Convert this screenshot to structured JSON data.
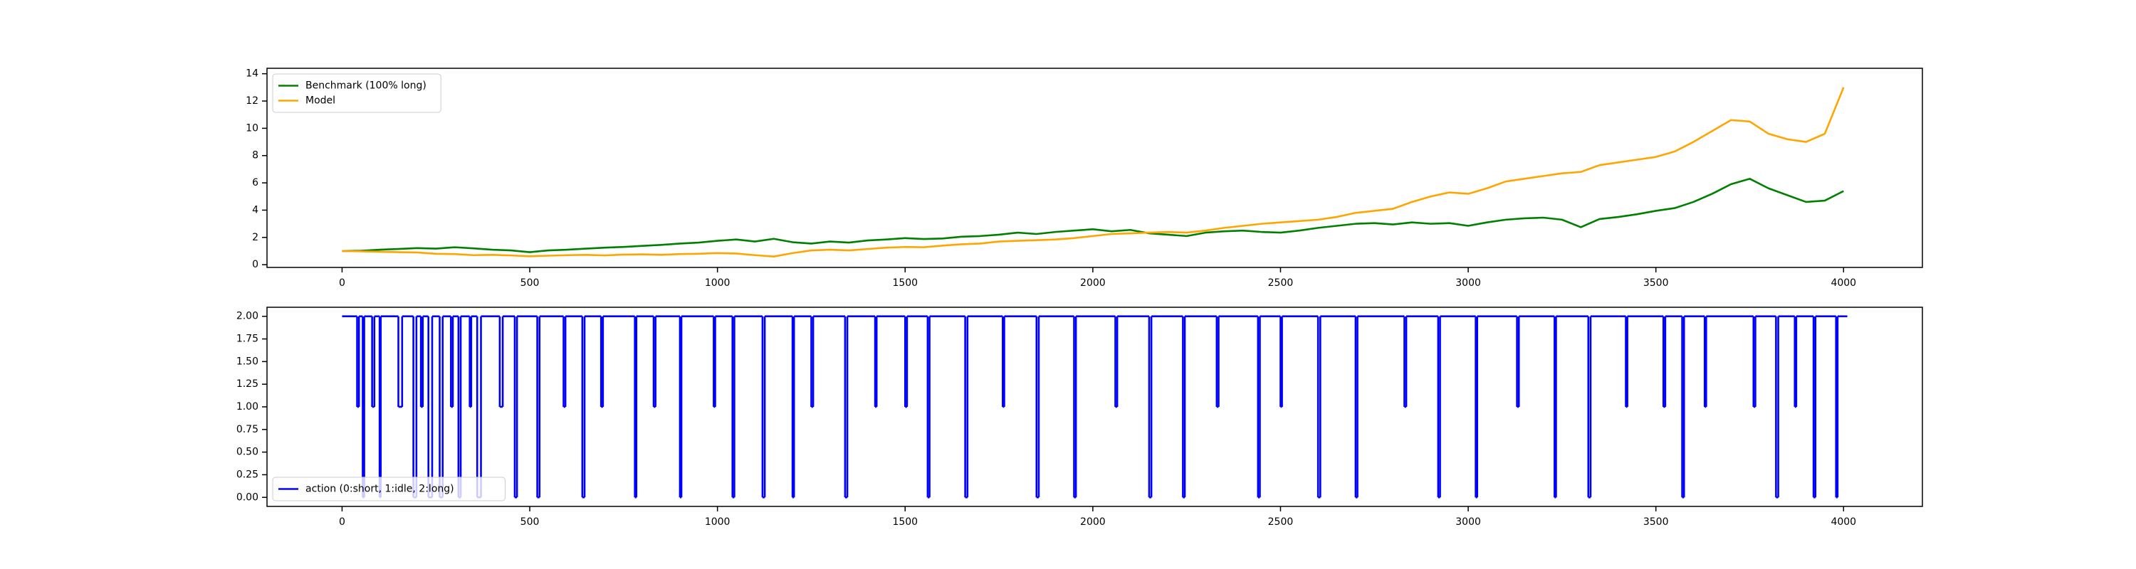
{
  "chart_data": [
    {
      "type": "line",
      "x": [
        0,
        50,
        100,
        150,
        200,
        250,
        300,
        350,
        400,
        450,
        500,
        550,
        600,
        650,
        700,
        750,
        800,
        850,
        900,
        950,
        1000,
        1050,
        1100,
        1150,
        1200,
        1250,
        1300,
        1350,
        1400,
        1450,
        1500,
        1550,
        1600,
        1650,
        1700,
        1750,
        1800,
        1850,
        1900,
        1950,
        2000,
        2050,
        2100,
        2150,
        2200,
        2250,
        2300,
        2350,
        2400,
        2450,
        2500,
        2550,
        2600,
        2650,
        2700,
        2750,
        2800,
        2850,
        2900,
        2950,
        3000,
        3050,
        3100,
        3150,
        3200,
        3250,
        3300,
        3350,
        3400,
        3450,
        3500,
        3550,
        3600,
        3650,
        3700,
        3750,
        3800,
        3850,
        3900,
        3950,
        4000
      ],
      "series": [
        {
          "name": "Benchmark (100% long)",
          "color": "#008000",
          "values": [
            1.0,
            1.02,
            1.1,
            1.15,
            1.22,
            1.18,
            1.28,
            1.2,
            1.1,
            1.05,
            0.92,
            1.05,
            1.1,
            1.18,
            1.25,
            1.3,
            1.38,
            1.45,
            1.55,
            1.62,
            1.75,
            1.85,
            1.7,
            1.9,
            1.65,
            1.55,
            1.7,
            1.62,
            1.78,
            1.85,
            1.95,
            1.88,
            1.92,
            2.05,
            2.1,
            2.2,
            2.35,
            2.25,
            2.4,
            2.5,
            2.6,
            2.45,
            2.55,
            2.3,
            2.2,
            2.1,
            2.35,
            2.45,
            2.5,
            2.4,
            2.35,
            2.5,
            2.7,
            2.85,
            3.0,
            3.05,
            2.95,
            3.1,
            3.0,
            3.05,
            2.85,
            3.1,
            3.3,
            3.4,
            3.45,
            3.3,
            2.75,
            3.35,
            3.5,
            3.7,
            3.95,
            4.15,
            4.6,
            5.2,
            5.9,
            6.3,
            5.6,
            5.1,
            4.6,
            4.7,
            5.4
          ]
        },
        {
          "name": "Model",
          "color": "#ffa500",
          "values": [
            1.0,
            0.98,
            0.95,
            0.92,
            0.9,
            0.8,
            0.78,
            0.7,
            0.72,
            0.68,
            0.62,
            0.66,
            0.7,
            0.72,
            0.68,
            0.74,
            0.76,
            0.72,
            0.78,
            0.8,
            0.85,
            0.82,
            0.7,
            0.6,
            0.85,
            1.05,
            1.1,
            1.05,
            1.15,
            1.25,
            1.3,
            1.28,
            1.4,
            1.5,
            1.55,
            1.7,
            1.75,
            1.8,
            1.85,
            1.95,
            2.1,
            2.25,
            2.3,
            2.35,
            2.4,
            2.35,
            2.5,
            2.7,
            2.85,
            3.0,
            3.1,
            3.2,
            3.3,
            3.5,
            3.8,
            3.95,
            4.1,
            4.6,
            5.0,
            5.3,
            5.2,
            5.6,
            6.1,
            6.3,
            6.5,
            6.7,
            6.8,
            7.3,
            7.5,
            7.7,
            7.9,
            8.3,
            9.0,
            9.8,
            10.6,
            10.5,
            9.6,
            9.2,
            9.0,
            9.6,
            13.0
          ]
        }
      ],
      "xlim": [
        -200,
        4210
      ],
      "xticks": [
        0,
        500,
        1000,
        1500,
        2000,
        2500,
        3000,
        3500,
        4000
      ],
      "ylim": [
        -0.2,
        14.4
      ],
      "yticks": [
        0,
        2,
        4,
        6,
        8,
        10,
        12,
        14
      ],
      "legend": "upper left"
    },
    {
      "type": "line",
      "drawstyle": "steps-post",
      "x": [
        0,
        40,
        45,
        55,
        59,
        80,
        86,
        100,
        103,
        150,
        160,
        190,
        198,
        210,
        215,
        230,
        240,
        260,
        268,
        290,
        295,
        310,
        316,
        340,
        344,
        360,
        370,
        420,
        428,
        460,
        466,
        520,
        526,
        590,
        595,
        640,
        646,
        690,
        695,
        780,
        784,
        830,
        835,
        900,
        904,
        990,
        994,
        1040,
        1045,
        1120,
        1126,
        1200,
        1204,
        1250,
        1255,
        1340,
        1346,
        1420,
        1424,
        1500,
        1505,
        1560,
        1565,
        1660,
        1666,
        1760,
        1764,
        1850,
        1856,
        1950,
        1955,
        2060,
        2065,
        2150,
        2156,
        2240,
        2245,
        2330,
        2335,
        2440,
        2445,
        2500,
        2504,
        2600,
        2606,
        2700,
        2705,
        2830,
        2835,
        2920,
        2925,
        3020,
        3024,
        3130,
        3135,
        3230,
        3234,
        3320,
        3326,
        3420,
        3424,
        3520,
        3525,
        3570,
        3575,
        3630,
        3634,
        3760,
        3765,
        3820,
        3826,
        3870,
        3874,
        3920,
        3925,
        3980,
        3984,
        4010
      ],
      "series": [
        {
          "name": "action (0:short, 1:idle, 2:long)",
          "color": "#0000ff",
          "values": [
            2,
            1,
            2,
            0,
            2,
            1,
            2,
            0,
            2,
            1,
            2,
            0,
            2,
            1,
            2,
            0,
            2,
            0,
            2,
            1,
            2,
            0,
            2,
            1,
            2,
            0,
            2,
            1,
            2,
            0,
            2,
            0,
            2,
            1,
            2,
            0,
            2,
            1,
            2,
            0,
            2,
            1,
            2,
            0,
            2,
            1,
            2,
            0,
            2,
            0,
            2,
            0,
            2,
            1,
            2,
            0,
            2,
            1,
            2,
            1,
            2,
            0,
            2,
            0,
            2,
            1,
            2,
            0,
            2,
            0,
            2,
            1,
            2,
            0,
            2,
            0,
            2,
            1,
            2,
            0,
            2,
            1,
            2,
            0,
            2,
            0,
            2,
            1,
            2,
            0,
            2,
            0,
            2,
            1,
            2,
            0,
            2,
            0,
            2,
            1,
            2,
            1,
            2,
            0,
            2,
            1,
            2,
            1,
            2,
            0,
            2,
            1,
            2,
            0,
            2,
            0,
            2,
            2
          ]
        }
      ],
      "xlim": [
        -200,
        4210
      ],
      "xticks": [
        0,
        500,
        1000,
        1500,
        2000,
        2500,
        3000,
        3500,
        4000
      ],
      "ylim": [
        -0.1,
        2.1
      ],
      "yticks": [
        {
          "value": 0,
          "label": "0.00"
        },
        {
          "value": 0.25,
          "label": "0.25"
        },
        {
          "value": 0.5,
          "label": "0.50"
        },
        {
          "value": 0.75,
          "label": "0.75"
        },
        {
          "value": 1,
          "label": "1.00"
        },
        {
          "value": 1.25,
          "label": "1.25"
        },
        {
          "value": 1.5,
          "label": "1.50"
        },
        {
          "value": 1.75,
          "label": "1.75"
        },
        {
          "value": 2,
          "label": "2.00"
        }
      ],
      "legend": "lower left"
    }
  ]
}
